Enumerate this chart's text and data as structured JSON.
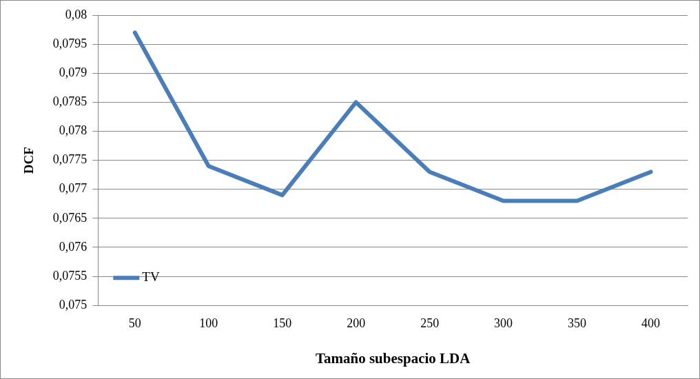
{
  "chart_data": {
    "type": "line",
    "xlabel": "Tamaño subespacio LDA",
    "ylabel": "DCF",
    "categories": [
      "50",
      "100",
      "150",
      "200",
      "250",
      "300",
      "350",
      "400"
    ],
    "series": [
      {
        "name": "TV",
        "color": "#4a7ebb",
        "values": [
          0.0797,
          0.0774,
          0.0769,
          0.0785,
          0.0773,
          0.0768,
          0.0768,
          0.0773
        ]
      }
    ],
    "ylim": [
      0.075,
      0.08
    ],
    "yticks": [
      {
        "value": 0.075,
        "label": "0,075"
      },
      {
        "value": 0.0755,
        "label": "0,0755"
      },
      {
        "value": 0.076,
        "label": "0,076"
      },
      {
        "value": 0.0765,
        "label": "0,0765"
      },
      {
        "value": 0.077,
        "label": "0,077"
      },
      {
        "value": 0.0775,
        "label": "0,0775"
      },
      {
        "value": 0.078,
        "label": "0,078"
      },
      {
        "value": 0.0785,
        "label": "0,0785"
      },
      {
        "value": 0.079,
        "label": "0,079"
      },
      {
        "value": 0.0795,
        "label": "0,0795"
      },
      {
        "value": 0.08,
        "label": "0,08"
      }
    ],
    "grid": "y",
    "legend": "bottom left",
    "marker": "none",
    "line_style": "solid"
  }
}
